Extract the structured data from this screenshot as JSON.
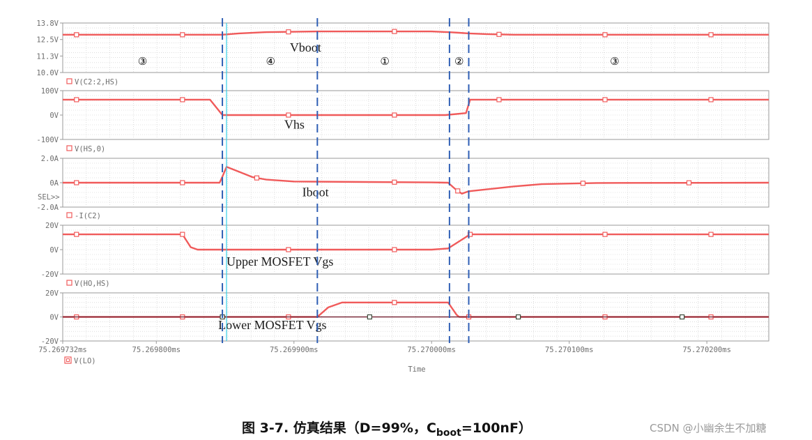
{
  "chart_data": {
    "type": "line",
    "x_unit": "ms",
    "x_range": [
      75.269732,
      75.270245
    ],
    "x_ticks": [
      {
        "x": 75.269732,
        "label": "75.269732ms"
      },
      {
        "x": 75.2698,
        "label": "75.269800ms"
      },
      {
        "x": 75.2699,
        "label": "75.269900ms"
      },
      {
        "x": 75.27,
        "label": "75.270000ms"
      },
      {
        "x": 75.2701,
        "label": "75.270100ms"
      },
      {
        "x": 75.2702,
        "label": "75.270200ms"
      }
    ],
    "x_label": "Time",
    "grid": true,
    "phase_lines_x": [
      75.269848,
      75.269917,
      75.270013,
      75.270027
    ],
    "cyan_line_x": 75.269851,
    "phases": [
      {
        "x": 75.26979,
        "label": "③"
      },
      {
        "x": 75.269883,
        "label": "④"
      },
      {
        "x": 75.269966,
        "label": "①"
      },
      {
        "x": 75.27002,
        "label": "②"
      },
      {
        "x": 75.270133,
        "label": "③"
      }
    ],
    "panels": [
      {
        "trace_name": "",
        "y_ticks": [
          "13.8V",
          "12.5V",
          "11.3V",
          "10.0V"
        ],
        "ylim": [
          10.0,
          13.8
        ],
        "annotation": "Vboot",
        "annotation_x": 75.269897,
        "annotation_y": 11.6,
        "series": [
          {
            "name": "Vboot",
            "color": "#f05a5a",
            "x": [
              75.269732,
              75.26984,
              75.269848,
              75.26986,
              75.26988,
              75.269917,
              75.27,
              75.270012,
              75.27002,
              75.270027,
              75.27004,
              75.27006,
              75.270245
            ],
            "y": [
              12.9,
              12.9,
              12.9,
              13.0,
              13.1,
              13.15,
              13.15,
              13.1,
              13.05,
              13.0,
              12.95,
              12.9,
              12.9
            ],
            "marker_x": [
              75.269742,
              75.269819,
              75.269896,
              75.269973,
              75.270049,
              75.270126,
              75.270203
            ]
          }
        ]
      },
      {
        "trace_name": "V(C2:2,HS)",
        "y_ticks": [
          "100V",
          "0V",
          "-100V"
        ],
        "ylim": [
          -100,
          100
        ],
        "annotation": "Vhs",
        "annotation_x": 75.269893,
        "annotation_y": -55,
        "series": [
          {
            "name": "V(C2:2,HS)",
            "color": "#f05a5a",
            "x": [
              75.269732,
              75.269839,
              75.269848,
              75.27001,
              75.270025,
              75.270028,
              75.270245
            ],
            "y": [
              63,
              63,
              0,
              0,
              8,
              63,
              63
            ],
            "marker_x": [
              75.269742,
              75.269819,
              75.269896,
              75.269973,
              75.270049,
              75.270126,
              75.270203
            ]
          }
        ]
      },
      {
        "trace_name": "V(HS,0)",
        "y_ticks": [
          "2.0A",
          "0A",
          "-2.0A"
        ],
        "ylim": [
          -2.0,
          2.0
        ],
        "annotation": "Iboot",
        "annotation_x": 75.269906,
        "annotation_y": -1.1,
        "side_label": "SEL>>",
        "series": [
          {
            "name": "V(HS,0)",
            "color": "#f05a5a",
            "x": [
              75.269732,
              75.269846,
              75.269848,
              75.269851,
              75.26986,
              75.26987,
              75.26988,
              75.2699,
              75.27,
              75.270012,
              75.270018,
              75.270022,
              75.270027,
              75.27004,
              75.27006,
              75.27008,
              75.27012,
              75.270245
            ],
            "y": [
              0,
              0,
              0.5,
              1.3,
              0.9,
              0.45,
              0.25,
              0.1,
              0.02,
              0,
              -0.6,
              -0.9,
              -0.7,
              -0.55,
              -0.3,
              -0.12,
              -0.02,
              0
            ],
            "marker_x": [
              75.269742,
              75.269819,
              75.269873,
              75.269973,
              75.270019,
              75.27011,
              75.270187
            ]
          }
        ]
      },
      {
        "trace_name": "-I(C2)",
        "y_ticks": [
          "20V",
          "0V",
          "-20V"
        ],
        "ylim": [
          -20,
          20
        ],
        "annotation": "Upper MOSFET Vgs",
        "annotation_x": 75.269851,
        "annotation_y": -13,
        "series": [
          {
            "name": "-I(C2)",
            "color": "#f05a5a",
            "x": [
              75.269732,
              75.269819,
              75.269825,
              75.26983,
              75.27,
              75.270012,
              75.270028,
              75.270245
            ],
            "y": [
              12.5,
              12.5,
              2,
              0,
              0,
              1,
              12.5,
              12.5
            ],
            "marker_x": [
              75.269742,
              75.269819,
              75.269896,
              75.269973,
              75.270028,
              75.270126,
              75.270203
            ]
          }
        ]
      },
      {
        "trace_name": "V(HO,HS)",
        "y_ticks": [
          "20V",
          "0V",
          "-20V"
        ],
        "ylim": [
          -20,
          20
        ],
        "annotation": "Lower MOSFET Vgs",
        "annotation_x": 75.269845,
        "annotation_y": -10,
        "series": [
          {
            "name": "V(HO,HS)",
            "color": "#f05a5a",
            "x": [
              75.269732,
              75.269917,
              75.269925,
              75.269935,
              75.270012,
              75.270018,
              75.27002,
              75.270245
            ],
            "y": [
              0,
              0,
              8,
              12,
              12,
              2,
              0,
              0
            ],
            "marker_x": [
              75.269742,
              75.269819,
              75.269896,
              75.269973,
              75.270027,
              75.270126,
              75.270203
            ]
          },
          {
            "name": "V(LO)",
            "color": "#7a2a3a",
            "x": [
              75.269732,
              75.270245
            ],
            "y": [
              0,
              0
            ],
            "marker_x": [
              75.269848,
              75.269955,
              75.270063,
              75.270182
            ]
          }
        ]
      }
    ],
    "bottom_legend": "V(LO)"
  },
  "caption": {
    "prefix": "图 3-7. 仿真结果（D=99%，C",
    "subscript": "boot",
    "suffix": "=100nF）"
  },
  "watermark": "CSDN @小幽余生不加糖",
  "colors": {
    "trace": "#f05a5a",
    "trace_dark": "#7a2a3a",
    "phase_line": "#2f5fb5",
    "cyan_line": "#35d0e8",
    "grid": "#c8c8c8",
    "frame": "#9a9a9a",
    "secondary_trace": "#7cc07c"
  }
}
